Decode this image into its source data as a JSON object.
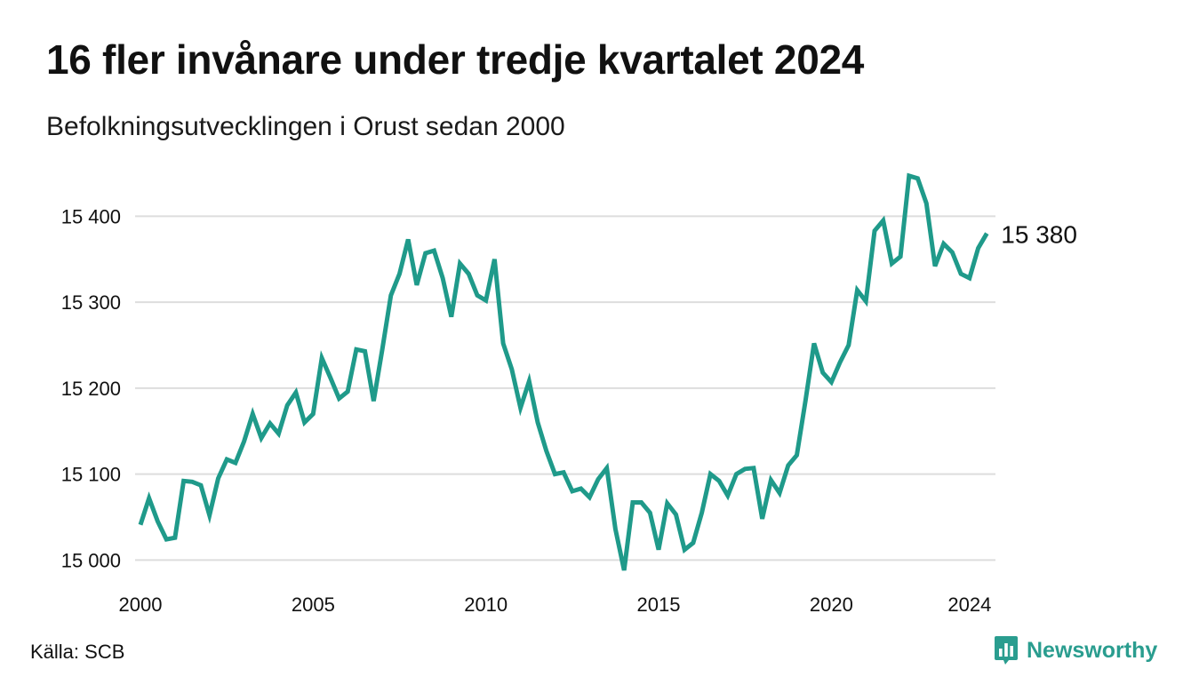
{
  "header": {
    "title": "16 fler invånare under tredje kvartalet 2024",
    "subtitle": "Befolkningsutvecklingen i Orust sedan 2000"
  },
  "footer": {
    "source": "Källa: SCB",
    "brand_name": "Newsworthy",
    "brand_icon": "newsworthy-logo-icon"
  },
  "colors": {
    "line": "#1f9a8a",
    "grid": "#dddddd",
    "brand": "#2a9d8f"
  },
  "chart_data": {
    "type": "line",
    "title": "16 fler invånare under tredje kvartalet 2024",
    "subtitle": "Befolkningsutvecklingen i Orust sedan 2000",
    "xlabel": "",
    "ylabel": "",
    "grid": true,
    "legend": "none",
    "x_unit": "year (quarterly data, 2000 Q1 – 2024 Q3)",
    "xlim": [
      2000.0,
      2024.75
    ],
    "ylim": [
      14990,
      15450
    ],
    "x_ticks": [
      2000,
      2005,
      2010,
      2015,
      2020,
      2024
    ],
    "x_tick_labels": [
      "2000",
      "2005",
      "2010",
      "2015",
      "2020",
      "2024"
    ],
    "y_ticks": [
      15000,
      15100,
      15200,
      15300,
      15400
    ],
    "y_tick_labels": [
      "15 000",
      "15 100",
      "15 200",
      "15 300",
      "15 400"
    ],
    "end_label": "15 380",
    "series": [
      {
        "values": [
          15041,
          15072,
          15045,
          15024,
          15026,
          15092,
          15091,
          15087,
          15052,
          15095,
          15117,
          15113,
          15138,
          15170,
          15142,
          15159,
          15147,
          15180,
          15195,
          15160,
          15170,
          15235,
          15212,
          15188,
          15196,
          15245,
          15243,
          15185,
          15245,
          15308,
          15333,
          15373,
          15320,
          15357,
          15360,
          15328,
          15283,
          15345,
          15333,
          15308,
          15302,
          15350,
          15252,
          15222,
          15177,
          15208,
          15160,
          15127,
          15100,
          15102,
          15080,
          15083,
          15073,
          15094,
          15107,
          15036,
          14988,
          15067,
          15067,
          15055,
          15012,
          15066,
          15053,
          15012,
          15020,
          15055,
          15100,
          15092,
          15075,
          15100,
          15106,
          15107,
          15048,
          15093,
          15078,
          15110,
          15122,
          15185,
          15252,
          15218,
          15207,
          15230,
          15250,
          15314,
          15301,
          15383,
          15395,
          15345,
          15353,
          15447,
          15444,
          15415,
          15342,
          15368,
          15358,
          15333,
          15328,
          15363,
          15380
        ]
      }
    ]
  }
}
